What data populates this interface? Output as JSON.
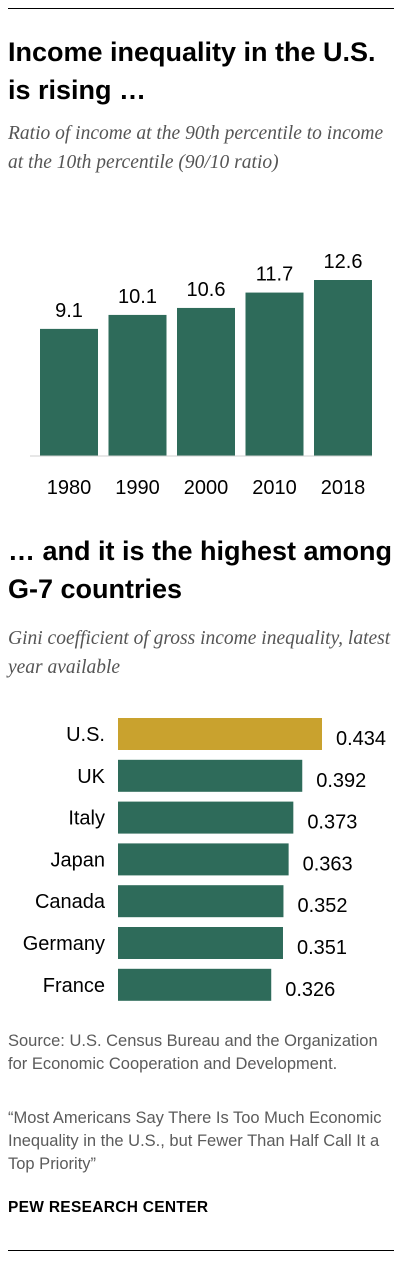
{
  "colors": {
    "bar": "#2e6b5a",
    "highlight": "#c9a22e",
    "subtitle": "#555555",
    "footer": "#5b5b5b"
  },
  "chart_data": [
    {
      "type": "bar",
      "title": "Income inequality in the U.S. is rising …",
      "subtitle": "Ratio of income at the 90th percentile to income at the 10th percentile (90/10 ratio)",
      "categories": [
        "1980",
        "1990",
        "2000",
        "2010",
        "2018"
      ],
      "values": [
        9.1,
        10.1,
        10.6,
        11.7,
        12.6
      ],
      "value_labels": [
        "9.1",
        "10.1",
        "10.6",
        "11.7",
        "12.6"
      ],
      "ylim": [
        0,
        12.6
      ],
      "grid": false
    },
    {
      "type": "bar",
      "orientation": "horizontal",
      "title": "… and it is the highest among G-7 countries",
      "subtitle": "Gini coefficient of gross income inequality, latest year available",
      "categories": [
        "U.S.",
        "UK",
        "Italy",
        "Japan",
        "Canada",
        "Germany",
        "France"
      ],
      "values": [
        0.434,
        0.392,
        0.373,
        0.363,
        0.352,
        0.351,
        0.326
      ],
      "value_labels": [
        "0.434",
        "0.392",
        "0.373",
        "0.363",
        "0.352",
        "0.351",
        "0.326"
      ],
      "highlight": "U.S.",
      "xlim": [
        0,
        0.434
      ],
      "grid": false
    }
  ],
  "footer": {
    "source": "Source: U.S. Census Bureau and the Organization for Economic Cooperation and Development.",
    "report": "“Most Americans Say There Is Too Much Economic Inequality in the U.S., but Fewer Than Half Call It a Top Priority”",
    "brand": "PEW RESEARCH CENTER"
  }
}
